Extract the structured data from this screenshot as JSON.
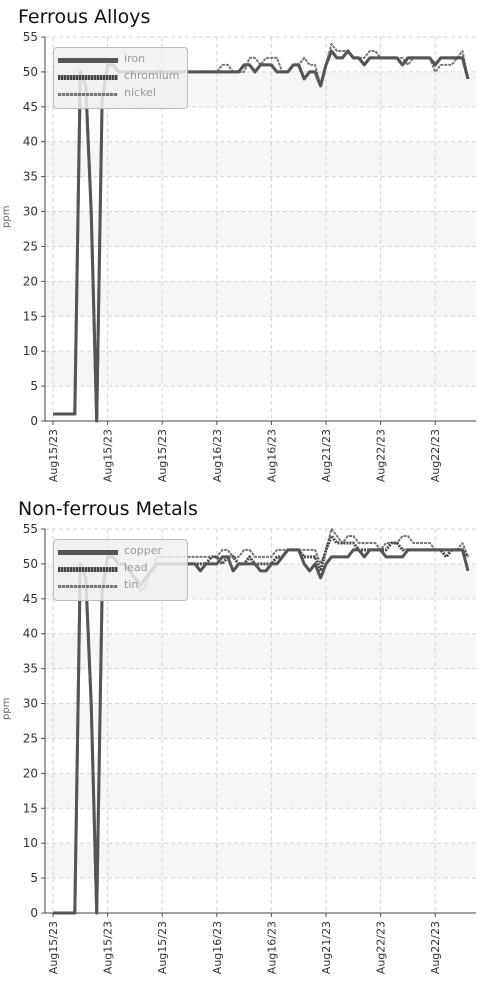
{
  "chart_data": [
    {
      "type": "line",
      "title": "Ferrous Alloys",
      "ylabel": "ppm",
      "ylim": [
        0,
        55
      ],
      "yticks": [
        0,
        5,
        10,
        15,
        20,
        25,
        30,
        35,
        40,
        45,
        50,
        55
      ],
      "xtick_labels": [
        "Aug15/23",
        "Aug15/23",
        "Aug15/23",
        "Aug16/23",
        "Aug16/23",
        "Aug21/23",
        "Aug22/23",
        "Aug22/23"
      ],
      "xtick_index": [
        0,
        10,
        20,
        30,
        40,
        50,
        60,
        70
      ],
      "grid": true,
      "legend_position": "top-left",
      "series": [
        {
          "name": "iron",
          "color": "#555555",
          "style": "solid",
          "values": [
            1,
            1,
            1,
            1,
            1,
            50,
            48,
            30,
            0,
            46,
            51,
            51,
            50,
            50,
            50,
            50,
            50,
            50,
            50,
            50,
            50,
            50,
            50,
            50,
            50,
            50,
            50,
            50,
            50,
            50,
            50,
            50,
            50,
            50,
            50,
            51,
            51,
            50,
            51,
            51,
            51,
            50,
            50,
            50,
            51,
            51,
            49,
            50,
            50,
            48,
            51,
            53,
            52,
            52,
            53,
            52,
            52,
            51,
            52,
            52,
            52,
            52,
            52,
            52,
            51,
            52,
            52,
            52,
            52,
            52,
            51,
            52,
            52,
            52,
            52,
            52,
            49
          ]
        },
        {
          "name": "chromium",
          "color": "#4a4a4a",
          "style": "dotted",
          "values": [
            1,
            1,
            1,
            1,
            1,
            50,
            48,
            30,
            0,
            46,
            51,
            51,
            50,
            50,
            50,
            50,
            50,
            50,
            50,
            50,
            50,
            50,
            50,
            50,
            50,
            50,
            50,
            50,
            50,
            50,
            50,
            50,
            50,
            50,
            50,
            51,
            51,
            50,
            51,
            51,
            51,
            50,
            50,
            50,
            51,
            51,
            49,
            50,
            50,
            48,
            51,
            53,
            52,
            52,
            53,
            52,
            52,
            51,
            52,
            52,
            52,
            52,
            52,
            52,
            51,
            52,
            52,
            52,
            52,
            52,
            51,
            52,
            52,
            52,
            52,
            52,
            49
          ]
        },
        {
          "name": "nickel",
          "color": "#777777",
          "style": "dashed",
          "values": [
            1,
            1,
            1,
            1,
            1,
            50,
            48,
            30,
            0,
            46,
            51,
            51,
            50,
            50,
            50,
            50,
            50,
            50,
            50,
            50,
            50,
            50,
            50,
            50,
            50,
            50,
            50,
            50,
            50,
            50,
            50,
            51,
            51,
            50,
            50,
            50,
            52,
            52,
            51,
            52,
            52,
            52,
            50,
            50,
            51,
            51,
            52,
            51,
            51,
            48,
            51,
            54,
            53,
            53,
            53,
            52,
            52,
            52,
            53,
            53,
            52,
            52,
            52,
            52,
            52,
            51,
            52,
            52,
            52,
            52,
            50,
            51,
            51,
            51,
            52,
            53,
            49
          ]
        }
      ]
    },
    {
      "type": "line",
      "title": "Non-ferrous Metals",
      "ylabel": "ppm",
      "ylim": [
        0,
        55
      ],
      "yticks": [
        0,
        5,
        10,
        15,
        20,
        25,
        30,
        35,
        40,
        45,
        50,
        55
      ],
      "xtick_labels": [
        "Aug15/23",
        "Aug15/23",
        "Aug15/23",
        "Aug16/23",
        "Aug16/23",
        "Aug21/23",
        "Aug22/23",
        "Aug22/23"
      ],
      "xtick_index": [
        0,
        10,
        20,
        30,
        40,
        50,
        60,
        70
      ],
      "grid": true,
      "legend_position": "top-left",
      "series": [
        {
          "name": "copper",
          "color": "#555555",
          "style": "solid",
          "values": [
            0,
            0,
            0,
            0,
            0,
            50,
            48,
            30,
            0,
            46,
            51,
            51,
            50,
            50,
            49,
            48,
            47,
            48,
            49,
            50,
            50,
            50,
            50,
            50,
            50,
            50,
            50,
            49,
            50,
            50,
            50,
            51,
            51,
            49,
            50,
            50,
            50,
            50,
            49,
            49,
            50,
            50,
            51,
            52,
            52,
            52,
            50,
            49,
            50,
            48,
            50,
            51,
            51,
            51,
            51,
            52,
            52,
            51,
            52,
            52,
            52,
            51,
            51,
            51,
            51,
            52,
            52,
            52,
            52,
            52,
            52,
            52,
            52,
            52,
            52,
            52,
            49
          ]
        },
        {
          "name": "lead",
          "color": "#4a4a4a",
          "style": "dotted",
          "values": [
            0,
            0,
            0,
            0,
            0,
            50,
            48,
            30,
            0,
            46,
            51,
            51,
            50,
            50,
            49,
            48,
            47,
            48,
            49,
            50,
            50,
            50,
            50,
            50,
            50,
            50,
            50,
            50,
            50,
            51,
            51,
            50,
            51,
            51,
            50,
            50,
            51,
            50,
            50,
            50,
            50,
            51,
            51,
            52,
            52,
            52,
            51,
            51,
            51,
            49,
            52,
            54,
            53,
            53,
            53,
            53,
            52,
            52,
            52,
            52,
            52,
            52,
            53,
            53,
            52,
            52,
            52,
            52,
            52,
            52,
            52,
            52,
            51,
            52,
            52,
            52,
            51
          ]
        },
        {
          "name": "tin",
          "color": "#777777",
          "style": "dashed",
          "values": [
            0,
            0,
            0,
            0,
            0,
            50,
            48,
            30,
            0,
            46,
            51,
            51,
            50,
            50,
            49,
            48,
            46,
            47,
            49,
            51,
            51,
            51,
            51,
            51,
            51,
            51,
            51,
            51,
            51,
            51,
            51,
            52,
            52,
            51,
            51,
            52,
            52,
            51,
            51,
            51,
            51,
            52,
            52,
            52,
            52,
            52,
            52,
            52,
            52,
            50,
            52,
            55,
            54,
            53,
            54,
            54,
            53,
            53,
            53,
            53,
            52,
            53,
            53,
            53,
            54,
            54,
            53,
            53,
            53,
            53,
            52,
            52,
            52,
            52,
            52,
            53,
            51
          ]
        }
      ]
    }
  ]
}
